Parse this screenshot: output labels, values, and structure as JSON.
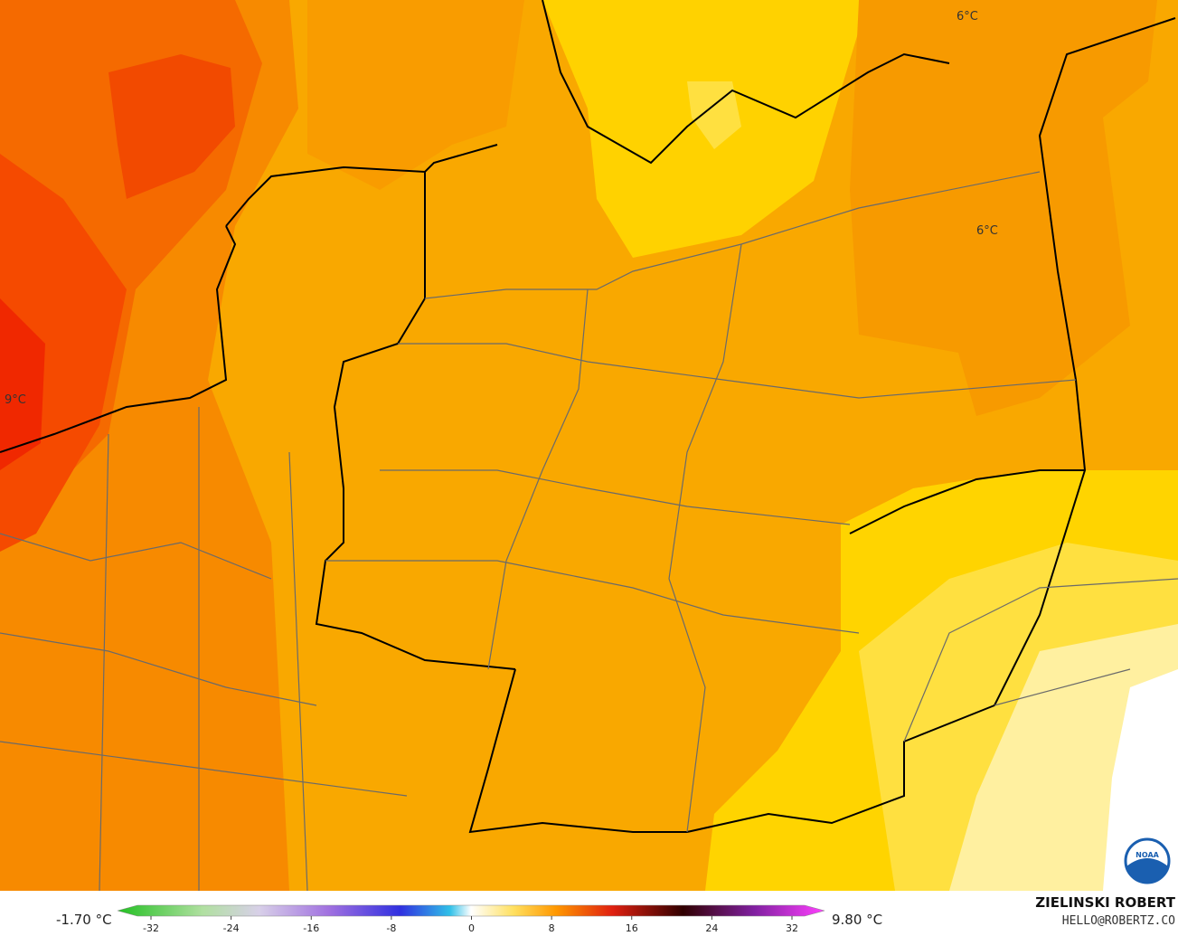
{
  "map": {
    "labels": [
      "6°C",
      "6°C",
      "9°C"
    ]
  },
  "colorbar": {
    "min_label": "-1.70 °C",
    "max_label": "9.80 °C",
    "ticks": [
      -32,
      -24,
      -16,
      -8,
      0,
      8,
      16,
      24,
      32
    ]
  },
  "credit": {
    "name": "ZIELINSKI ROBERT",
    "contact": "HELLO@ROBERTZ.CO",
    "logo": "NOAA"
  }
}
